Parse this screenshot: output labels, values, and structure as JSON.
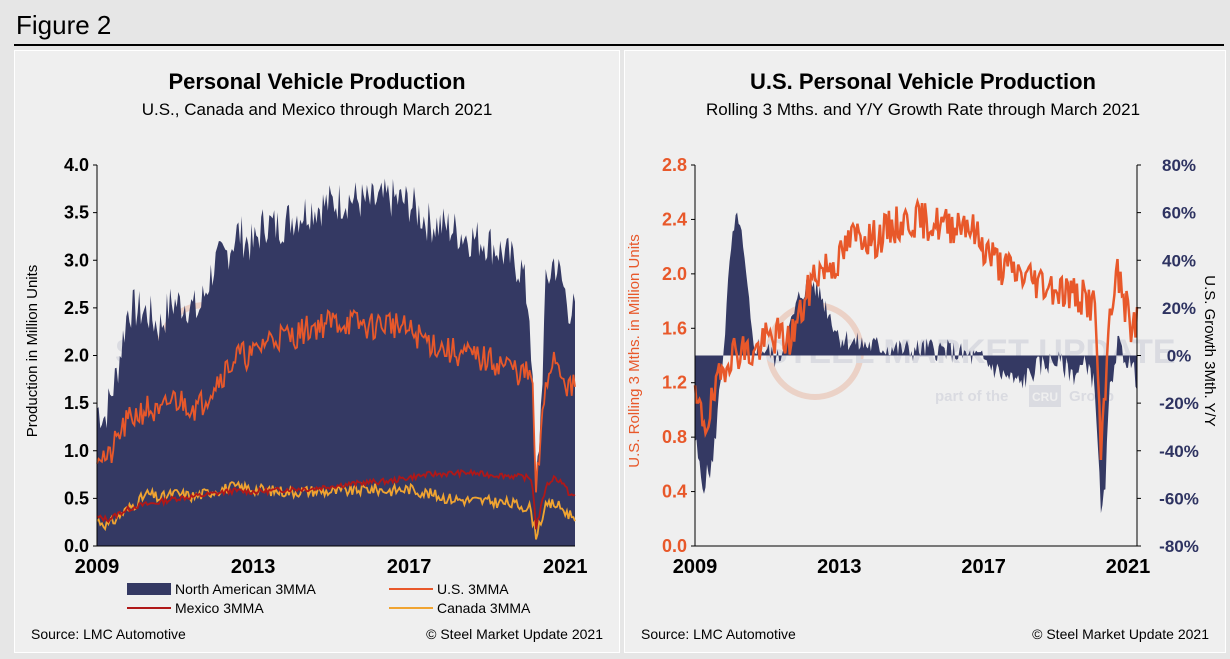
{
  "figure_label": "Figure 2",
  "colors": {
    "navy": "#343963",
    "orange": "#e8582a",
    "dark_red": "#b01818",
    "light_orange": "#f0a431",
    "right_axis_navy": "#2e3361",
    "watermark": "#c9cbd6"
  },
  "watermark": {
    "main": "STEEL MARKET UPDATE",
    "part_of": "part of the",
    "brand": "CRU",
    "group": "Group"
  },
  "chart_data": [
    {
      "type": "area",
      "title": "Personal Vehicle Production",
      "subtitle": "U.S., Canada and Mexico through March 2021",
      "ylabel": "Production in Million Units",
      "xlabel": "",
      "ylim": [
        0,
        4
      ],
      "yticks": [
        "0.0",
        "0.5",
        "1.0",
        "1.5",
        "2.0",
        "2.5",
        "3.0",
        "3.5",
        "4.0"
      ],
      "xticks": [
        "2009",
        "2013",
        "2017",
        "2021"
      ],
      "x_range": [
        2009.0,
        2021.25
      ],
      "anchors": {
        "na": [
          [
            2009.0,
            1.45
          ],
          [
            2009.2,
            1.35
          ],
          [
            2009.5,
            1.8
          ],
          [
            2009.8,
            2.5
          ],
          [
            2010.3,
            2.45
          ],
          [
            2010.6,
            2.3
          ],
          [
            2010.9,
            2.55
          ],
          [
            2011.3,
            2.55
          ],
          [
            2011.6,
            2.45
          ],
          [
            2012.0,
            2.95
          ],
          [
            2012.3,
            3.05
          ],
          [
            2012.6,
            3.3
          ],
          [
            2013.0,
            3.15
          ],
          [
            2013.3,
            3.4
          ],
          [
            2013.6,
            3.35
          ],
          [
            2014.0,
            3.45
          ],
          [
            2014.5,
            3.55
          ],
          [
            2015.0,
            3.6
          ],
          [
            2015.5,
            3.65
          ],
          [
            2016.0,
            3.6
          ],
          [
            2016.5,
            3.65
          ],
          [
            2017.0,
            3.6
          ],
          [
            2017.5,
            3.4
          ],
          [
            2018.0,
            3.35
          ],
          [
            2018.5,
            3.25
          ],
          [
            2019.0,
            3.2
          ],
          [
            2019.5,
            3.05
          ],
          [
            2019.9,
            2.9
          ],
          [
            2020.1,
            2.4
          ],
          [
            2020.25,
            0.6
          ],
          [
            2020.35,
            1.2
          ],
          [
            2020.5,
            2.7
          ],
          [
            2020.7,
            3.0
          ],
          [
            2020.9,
            2.8
          ],
          [
            2021.1,
            2.5
          ],
          [
            2021.25,
            2.45
          ]
        ],
        "us": [
          [
            2009.0,
            1.0
          ],
          [
            2009.3,
            0.9
          ],
          [
            2009.6,
            1.2
          ],
          [
            2009.9,
            1.35
          ],
          [
            2010.3,
            1.45
          ],
          [
            2010.6,
            1.35
          ],
          [
            2010.9,
            1.55
          ],
          [
            2011.3,
            1.5
          ],
          [
            2011.6,
            1.45
          ],
          [
            2012.0,
            1.7
          ],
          [
            2012.3,
            1.85
          ],
          [
            2012.6,
            2.0
          ],
          [
            2013.0,
            2.0
          ],
          [
            2013.3,
            2.15
          ],
          [
            2013.6,
            2.2
          ],
          [
            2014.0,
            2.2
          ],
          [
            2014.5,
            2.3
          ],
          [
            2015.0,
            2.35
          ],
          [
            2015.5,
            2.35
          ],
          [
            2016.0,
            2.3
          ],
          [
            2016.5,
            2.35
          ],
          [
            2017.0,
            2.25
          ],
          [
            2017.5,
            2.15
          ],
          [
            2018.0,
            2.05
          ],
          [
            2018.5,
            2.0
          ],
          [
            2019.0,
            1.95
          ],
          [
            2019.5,
            1.9
          ],
          [
            2019.9,
            1.8
          ],
          [
            2020.15,
            1.8
          ],
          [
            2020.25,
            0.55
          ],
          [
            2020.35,
            1.0
          ],
          [
            2020.5,
            1.7
          ],
          [
            2020.7,
            2.0
          ],
          [
            2020.9,
            1.85
          ],
          [
            2021.1,
            1.65
          ],
          [
            2021.25,
            1.65
          ]
        ],
        "mexico": [
          [
            2009.0,
            0.3
          ],
          [
            2009.3,
            0.28
          ],
          [
            2009.6,
            0.35
          ],
          [
            2010.0,
            0.42
          ],
          [
            2010.5,
            0.45
          ],
          [
            2011.0,
            0.5
          ],
          [
            2011.5,
            0.52
          ],
          [
            2012.0,
            0.55
          ],
          [
            2012.5,
            0.58
          ],
          [
            2013.0,
            0.57
          ],
          [
            2013.5,
            0.58
          ],
          [
            2014.0,
            0.6
          ],
          [
            2014.5,
            0.6
          ],
          [
            2015.0,
            0.63
          ],
          [
            2015.5,
            0.65
          ],
          [
            2016.0,
            0.67
          ],
          [
            2016.5,
            0.68
          ],
          [
            2017.0,
            0.72
          ],
          [
            2017.5,
            0.75
          ],
          [
            2018.0,
            0.76
          ],
          [
            2018.5,
            0.77
          ],
          [
            2019.0,
            0.75
          ],
          [
            2019.5,
            0.74
          ],
          [
            2020.0,
            0.72
          ],
          [
            2020.15,
            0.7
          ],
          [
            2020.25,
            0.2
          ],
          [
            2020.35,
            0.35
          ],
          [
            2020.5,
            0.62
          ],
          [
            2020.7,
            0.72
          ],
          [
            2020.9,
            0.68
          ],
          [
            2021.1,
            0.55
          ],
          [
            2021.25,
            0.52
          ]
        ],
        "canada": [
          [
            2009.0,
            0.27
          ],
          [
            2009.3,
            0.22
          ],
          [
            2009.6,
            0.33
          ],
          [
            2010.0,
            0.45
          ],
          [
            2010.3,
            0.55
          ],
          [
            2010.6,
            0.5
          ],
          [
            2011.0,
            0.55
          ],
          [
            2011.5,
            0.52
          ],
          [
            2012.0,
            0.58
          ],
          [
            2012.5,
            0.62
          ],
          [
            2013.0,
            0.6
          ],
          [
            2013.5,
            0.58
          ],
          [
            2014.0,
            0.57
          ],
          [
            2014.5,
            0.58
          ],
          [
            2015.0,
            0.57
          ],
          [
            2015.5,
            0.58
          ],
          [
            2016.0,
            0.6
          ],
          [
            2016.5,
            0.58
          ],
          [
            2017.0,
            0.6
          ],
          [
            2017.5,
            0.55
          ],
          [
            2018.0,
            0.5
          ],
          [
            2018.5,
            0.48
          ],
          [
            2019.0,
            0.47
          ],
          [
            2019.5,
            0.45
          ],
          [
            2019.9,
            0.42
          ],
          [
            2020.1,
            0.4
          ],
          [
            2020.25,
            0.12
          ],
          [
            2020.35,
            0.25
          ],
          [
            2020.5,
            0.4
          ],
          [
            2020.7,
            0.45
          ],
          [
            2020.9,
            0.4
          ],
          [
            2021.1,
            0.33
          ],
          [
            2021.25,
            0.32
          ]
        ]
      },
      "legend": [
        "North American 3MMA",
        "U.S. 3MMA",
        "Mexico 3MMA",
        "Canada 3MMA"
      ],
      "source": "Source: LMC Automotive",
      "credit": "© Steel Market Update 2021"
    },
    {
      "type": "line",
      "title": "U.S. Personal Vehicle Production",
      "subtitle": "Rolling 3 Mths. and Y/Y Growth Rate through March 2021",
      "ylabel_left": "U.S. Rolling 3 Mths. in Million Units",
      "ylabel_right": "U.S. Growth 3Mth. Y/Y",
      "ylim_left": [
        0,
        2.8
      ],
      "ylim_right": [
        -80,
        80
      ],
      "yticks_left": [
        "0.0",
        "0.4",
        "0.8",
        "1.2",
        "1.6",
        "2.0",
        "2.4",
        "2.8"
      ],
      "yticks_right": [
        "-80%",
        "-60%",
        "-40%",
        "-20%",
        "0%",
        "20%",
        "40%",
        "60%",
        "80%"
      ],
      "xticks": [
        "2009",
        "2013",
        "2017",
        "2021"
      ],
      "x_range": [
        2009.0,
        2021.25
      ],
      "anchors": {
        "us": [
          [
            2009.0,
            1.05
          ],
          [
            2009.3,
            0.9
          ],
          [
            2009.6,
            1.15
          ],
          [
            2009.9,
            1.4
          ],
          [
            2010.3,
            1.45
          ],
          [
            2010.6,
            1.4
          ],
          [
            2010.9,
            1.5
          ],
          [
            2011.3,
            1.55
          ],
          [
            2011.6,
            1.5
          ],
          [
            2012.0,
            1.75
          ],
          [
            2012.3,
            2.0
          ],
          [
            2012.6,
            2.05
          ],
          [
            2013.0,
            2.1
          ],
          [
            2013.3,
            2.25
          ],
          [
            2013.6,
            2.3
          ],
          [
            2014.0,
            2.25
          ],
          [
            2014.5,
            2.35
          ],
          [
            2015.0,
            2.4
          ],
          [
            2015.5,
            2.38
          ],
          [
            2016.0,
            2.35
          ],
          [
            2016.5,
            2.4
          ],
          [
            2017.0,
            2.2
          ],
          [
            2017.5,
            2.05
          ],
          [
            2018.0,
            2.0
          ],
          [
            2018.5,
            1.95
          ],
          [
            2019.0,
            1.9
          ],
          [
            2019.5,
            1.85
          ],
          [
            2019.9,
            1.8
          ],
          [
            2020.1,
            1.75
          ],
          [
            2020.25,
            0.65
          ],
          [
            2020.35,
            1.0
          ],
          [
            2020.5,
            1.75
          ],
          [
            2020.7,
            2.0
          ],
          [
            2020.9,
            1.8
          ],
          [
            2021.1,
            1.6
          ],
          [
            2021.25,
            1.65
          ]
        ],
        "growth": [
          [
            2009.0,
            -35
          ],
          [
            2009.2,
            -55
          ],
          [
            2009.5,
            -45
          ],
          [
            2009.8,
            5
          ],
          [
            2010.0,
            45
          ],
          [
            2010.2,
            60
          ],
          [
            2010.4,
            35
          ],
          [
            2010.6,
            5
          ],
          [
            2011.0,
            2
          ],
          [
            2011.3,
            -2
          ],
          [
            2011.6,
            10
          ],
          [
            2011.9,
            25
          ],
          [
            2012.2,
            32
          ],
          [
            2012.5,
            25
          ],
          [
            2012.8,
            15
          ],
          [
            2013.0,
            8
          ],
          [
            2013.5,
            5
          ],
          [
            2014.0,
            4
          ],
          [
            2014.5,
            3
          ],
          [
            2015.0,
            2
          ],
          [
            2015.5,
            3
          ],
          [
            2016.0,
            2
          ],
          [
            2016.5,
            0
          ],
          [
            2017.0,
            -2
          ],
          [
            2017.5,
            -8
          ],
          [
            2018.0,
            -12
          ],
          [
            2018.5,
            -5
          ],
          [
            2019.0,
            -2
          ],
          [
            2019.5,
            -8
          ],
          [
            2019.9,
            -3
          ],
          [
            2020.1,
            -15
          ],
          [
            2020.25,
            -68
          ],
          [
            2020.35,
            -60
          ],
          [
            2020.5,
            -15
          ],
          [
            2020.7,
            5
          ],
          [
            2020.9,
            0
          ],
          [
            2021.1,
            -5
          ],
          [
            2021.25,
            -10
          ]
        ]
      },
      "source": "Source: LMC Automotive",
      "credit": "© Steel Market Update 2021"
    }
  ]
}
